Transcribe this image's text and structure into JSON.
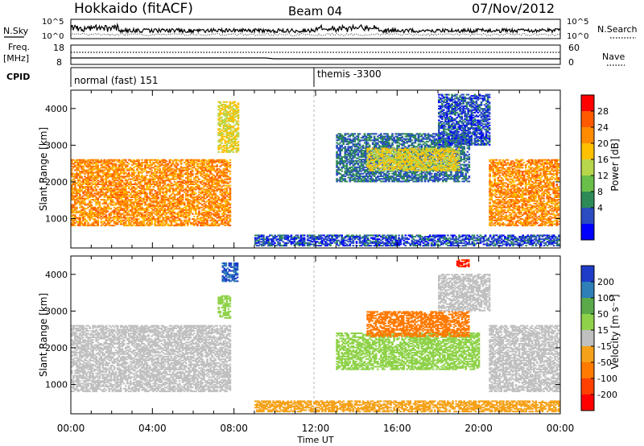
{
  "header": {
    "title": "Hokkaido (fitACF)",
    "beam": "Beam 04",
    "date": "07/Nov/2012"
  },
  "strip_labels": {
    "nsky": "N.Sky",
    "nsky_ticks": [
      "10^5",
      "10^0"
    ],
    "nsearch": "N.Search",
    "nsearch_ticks": [
      "10^5",
      "10^0"
    ],
    "freq_line1": "Freq.",
    "freq_line2": "[MHz]",
    "freq_ticks": [
      "18",
      "8"
    ],
    "nave": "Nave",
    "nave_ticks": [
      "60",
      "0"
    ],
    "cpid": "CPID"
  },
  "cpid_segments": [
    {
      "label": "normal (fast) 151",
      "start_hour": 0
    },
    {
      "label": "themis -3300",
      "start_hour": 12
    }
  ],
  "axes": {
    "y_label": "Slant Range [km]",
    "y_ticks": [
      "1000",
      "2000",
      "3000",
      "4000"
    ],
    "x_label": "Time UT",
    "x_ticks": [
      "00:00",
      "04:00",
      "08:00",
      "12:00",
      "16:00",
      "20:00",
      "00:00"
    ]
  },
  "colorbars": {
    "power": {
      "label": "Power [dB]",
      "ticks": [
        "4",
        "8",
        "12",
        "16",
        "20",
        "24",
        "28"
      ],
      "colors": [
        "#0000ff",
        "#2a4cc0",
        "#2e8b57",
        "#6abf4b",
        "#b8d64a",
        "#ffc000",
        "#ff8c00",
        "#ff5a00",
        "#ff0000"
      ]
    },
    "velocity": {
      "label": "Velocity [m s⁻¹]",
      "ticks": [
        "200",
        "100",
        "50",
        "15",
        "-15",
        "-50",
        "-100",
        "-200"
      ],
      "colors": [
        "#1f3cc8",
        "#2e7fb8",
        "#5aaa4a",
        "#8fd24a",
        "#c0c0c0",
        "#f5a21a",
        "#ff7a00",
        "#ff4000",
        "#ff0000"
      ]
    }
  },
  "chart_data": [
    {
      "type": "heatmap",
      "name": "power",
      "x_range_hours": [
        0,
        24
      ],
      "y_range_km": [
        200,
        4500
      ],
      "regions": [
        {
          "t0": 0.0,
          "t1": 7.8,
          "r0": 800,
          "r1": 2600,
          "value": 26
        },
        {
          "t0": 7.2,
          "t1": 8.2,
          "r0": 2800,
          "r1": 4200,
          "value": 20
        },
        {
          "t0": 9.0,
          "t1": 23.9,
          "r0": 250,
          "r1": 550,
          "value": 6
        },
        {
          "t0": 13.0,
          "t1": 19.5,
          "r0": 2000,
          "r1": 3300,
          "value": 8
        },
        {
          "t0": 14.5,
          "t1": 19.0,
          "r0": 2300,
          "r1": 2900,
          "value": 20
        },
        {
          "t0": 18.0,
          "t1": 20.5,
          "r0": 3000,
          "r1": 4400,
          "value": 6
        },
        {
          "t0": 20.5,
          "t1": 23.9,
          "r0": 800,
          "r1": 2600,
          "value": 26
        }
      ]
    },
    {
      "type": "heatmap",
      "name": "velocity",
      "x_range_hours": [
        0,
        24
      ],
      "y_range_km": [
        200,
        4500
      ],
      "regions": [
        {
          "t0": 0.0,
          "t1": 7.8,
          "r0": 800,
          "r1": 2600,
          "value": 0
        },
        {
          "t0": 7.4,
          "t1": 8.2,
          "r0": 3800,
          "r1": 4300,
          "value": 200
        },
        {
          "t0": 7.2,
          "t1": 7.8,
          "r0": 2800,
          "r1": 3400,
          "value": 40
        },
        {
          "t0": 9.0,
          "t1": 23.9,
          "r0": 250,
          "r1": 550,
          "value": -40
        },
        {
          "t0": 13.0,
          "t1": 20.0,
          "r0": 1400,
          "r1": 2400,
          "value": 30
        },
        {
          "t0": 14.5,
          "t1": 19.5,
          "r0": 2300,
          "r1": 3000,
          "value": -60
        },
        {
          "t0": 18.0,
          "t1": 20.5,
          "r0": 3000,
          "r1": 4000,
          "value": 0
        },
        {
          "t0": 18.9,
          "t1": 19.5,
          "r0": 4200,
          "r1": 4400,
          "value": -200
        },
        {
          "t0": 20.5,
          "t1": 23.9,
          "r0": 800,
          "r1": 2600,
          "value": 0
        }
      ]
    }
  ]
}
